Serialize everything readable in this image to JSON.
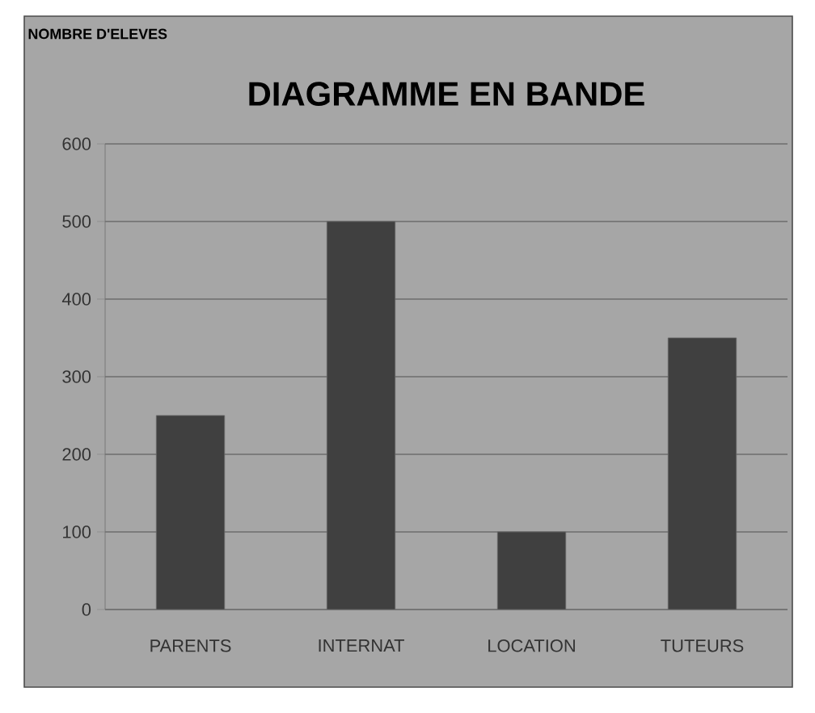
{
  "chart_data": {
    "type": "bar",
    "title": "DIAGRAMME EN BANDE",
    "annotations": [
      "NOMBRE D'ELEVES"
    ],
    "categories": [
      "PARENTS",
      "INTERNAT",
      "LOCATION",
      "TUTEURS"
    ],
    "values": [
      250,
      500,
      100,
      350
    ],
    "color": "#404040",
    "ylim": [
      0,
      600
    ],
    "yticks": [
      0,
      100,
      200,
      300,
      400,
      500,
      600
    ],
    "grid": "y"
  }
}
